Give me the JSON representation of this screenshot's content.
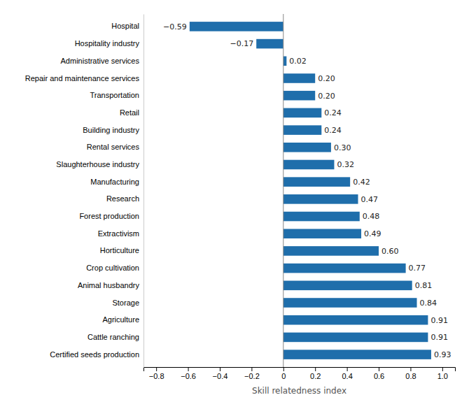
{
  "chart_data": {
    "type": "bar",
    "orientation": "horizontal",
    "xlabel": "Skill relatedness index",
    "categories": [
      "Certified seeds production",
      "Cattle ranching",
      "Agriculture",
      "Storage",
      "Animal husbandry",
      "Crop cultivation",
      "Horticulture",
      "Extractivism",
      "Forest production",
      "Research",
      "Manufacturing",
      "Slaughterhouse industry",
      "Rental services",
      "Building industry",
      "Retail",
      "Transportation",
      "Repair and maintenance services",
      "Administrative services",
      "Hospitality industry",
      "Hospital"
    ],
    "values": [
      0.93,
      0.91,
      0.91,
      0.84,
      0.81,
      0.77,
      0.6,
      0.49,
      0.48,
      0.47,
      0.42,
      0.32,
      0.3,
      0.24,
      0.24,
      0.2,
      0.2,
      0.02,
      -0.17,
      -0.59
    ],
    "value_labels": [
      "0.93",
      "0.91",
      "0.91",
      "0.84",
      "0.81",
      "0.77",
      "0.60",
      "0.49",
      "0.48",
      "0.47",
      "0.42",
      "0.32",
      "0.30",
      "0.24",
      "0.24",
      "0.20",
      "0.20",
      "0.02",
      "−0.17",
      "−0.59"
    ],
    "color": "#1f6eab",
    "xlim": [
      -0.88,
      1.08
    ],
    "xticks": [
      {
        "value": -0.8,
        "label": "−0.8"
      },
      {
        "value": -0.6,
        "label": "−0.6"
      },
      {
        "value": -0.4,
        "label": "−0.4"
      },
      {
        "value": -0.2,
        "label": "−0.2"
      },
      0,
      0.2,
      0.4,
      0.6,
      0.8,
      {
        "value": 1.0,
        "label": "1.0"
      }
    ],
    "data_labels": true,
    "grid": false
  }
}
